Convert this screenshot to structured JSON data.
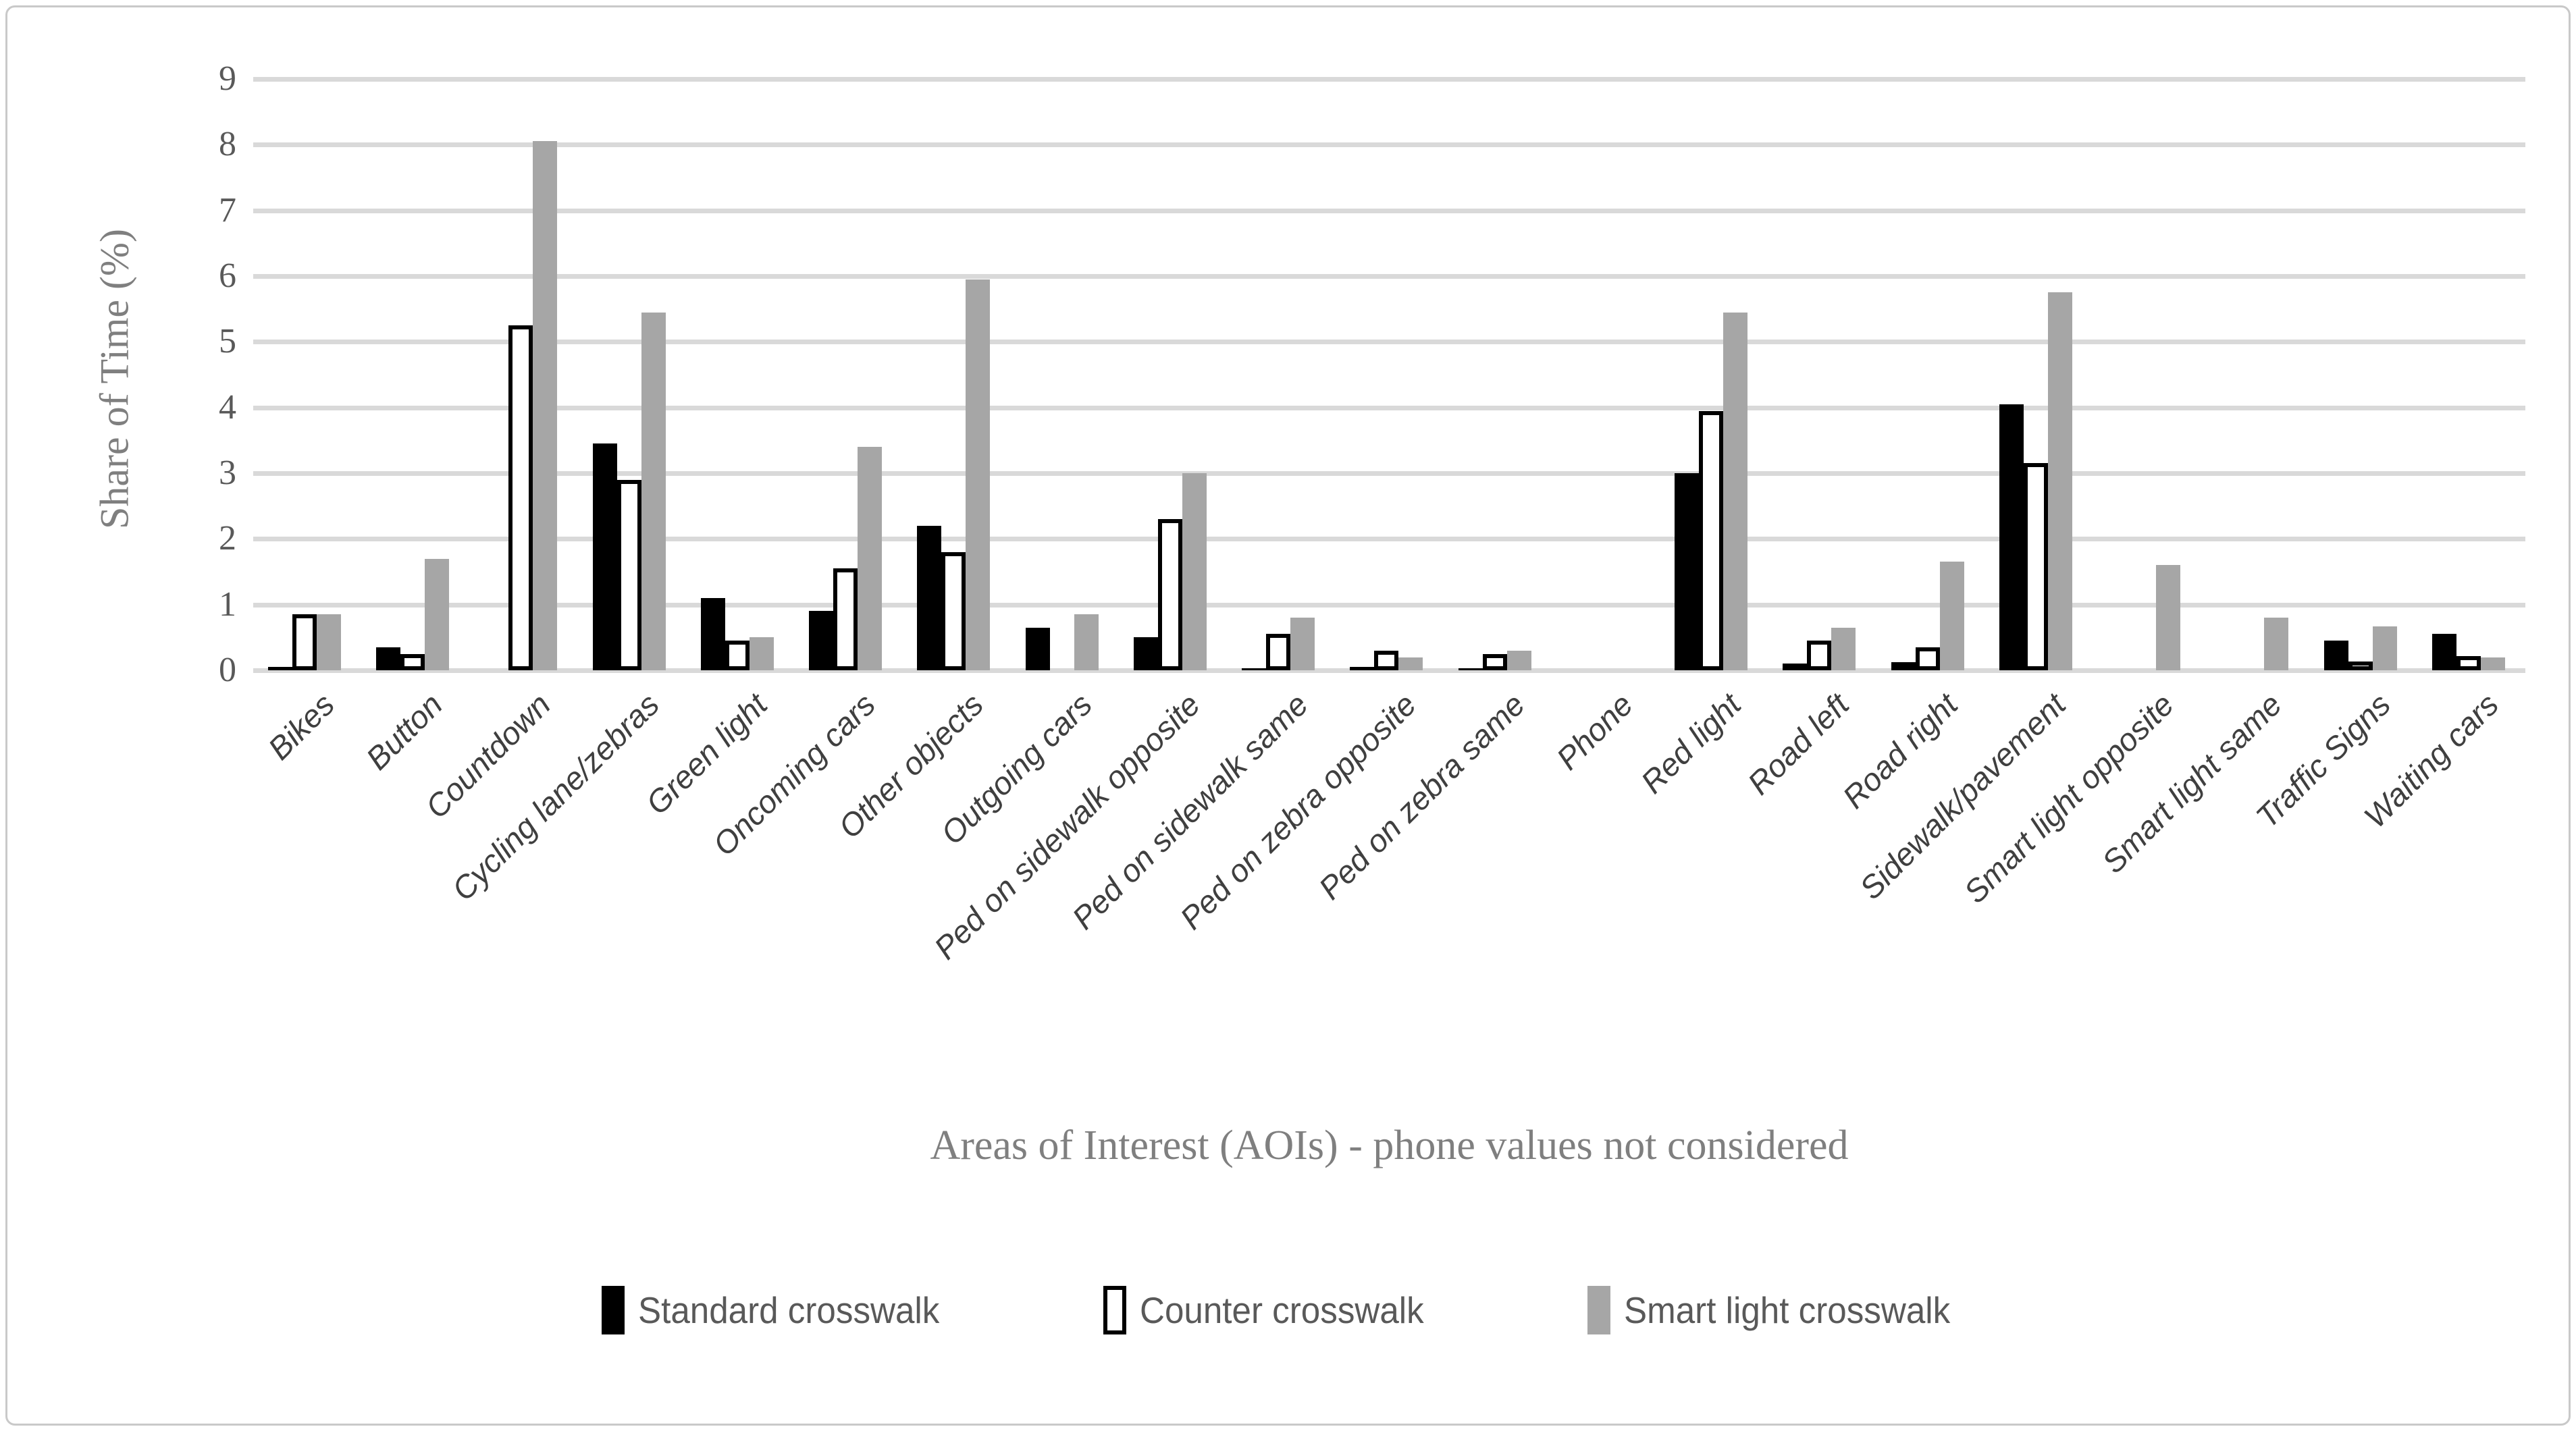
{
  "chart_data": {
    "type": "bar",
    "xlabel": "Areas of Interest (AOIs) - phone values not considered",
    "ylabel": "Share of Time (%)",
    "ylim": [
      0,
      9
    ],
    "y_ticks": [
      0,
      1,
      2,
      3,
      4,
      5,
      6,
      7,
      8,
      9
    ],
    "grid": true,
    "legend_position": "bottom",
    "categories": [
      "Bikes",
      "Button",
      "Countdown",
      "Cycling lane/zebras",
      "Green light",
      "Oncoming cars",
      "Other objects",
      "Outgoing cars",
      "Ped on sidewalk opposite",
      "Ped on sidewalk same",
      "Ped on zebra opposite",
      "Ped on zebra same",
      "Phone",
      "Red light",
      "Road left",
      "Road right",
      "Sidewalk/pavement",
      "Smart light opposite",
      "Smart light same",
      "Traffic Signs",
      "Waiting cars"
    ],
    "series": [
      {
        "name": "Standard crosswalk",
        "fill": "#000000",
        "outline": false,
        "values": [
          0.05,
          0.35,
          0,
          3.45,
          1.1,
          0.9,
          2.2,
          0.65,
          0.5,
          0.03,
          0.05,
          0.03,
          0,
          3.0,
          0.1,
          0.12,
          4.05,
          0,
          0,
          0.45,
          0.55
        ]
      },
      {
        "name": "Counter crosswalk",
        "fill": "#ffffff",
        "outline": true,
        "values": [
          0.85,
          0.25,
          5.25,
          2.9,
          0.45,
          1.55,
          1.8,
          0,
          2.3,
          0.55,
          0.3,
          0.25,
          0,
          3.95,
          0.45,
          0.35,
          3.15,
          0,
          0,
          0.13,
          0.22
        ]
      },
      {
        "name": "Smart light crosswalk",
        "fill": "#a6a6a6",
        "outline": false,
        "values": [
          0.85,
          1.7,
          8.05,
          5.45,
          0.5,
          3.4,
          5.95,
          0.85,
          3.0,
          0.8,
          0.2,
          0.3,
          0,
          5.45,
          0.65,
          1.65,
          5.75,
          1.6,
          0.8,
          0.67,
          0.2
        ]
      }
    ],
    "colors": {
      "grid": "#d9d9d9",
      "tick_label": "#595959",
      "axis_title": "#7f7f7f",
      "category_label": "#3f3f3f",
      "legend_label": "#595959"
    }
  }
}
